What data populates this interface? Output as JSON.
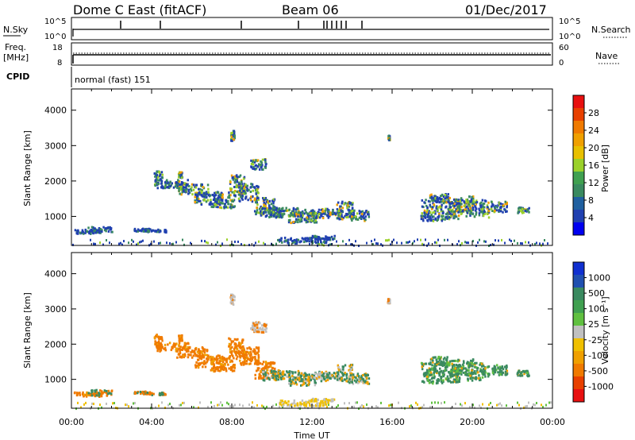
{
  "header": {
    "station": "Dome C East (fitACF)",
    "beam": "Beam 06",
    "date": "01/Dec/2017"
  },
  "strip_labels": {
    "nsky": "N.Sky",
    "nsky_top": "10^5",
    "nsky_bottom": "10^0",
    "nsearch": "N.Search",
    "nsearch_top": "10^5",
    "nsearch_bottom": "10^0",
    "freq": "Freq.",
    "freq_unit": "[MHz]",
    "freq_top": "18",
    "freq_bottom": "8",
    "nave": "Nave",
    "nave_top": "60",
    "nave_bottom": "0",
    "cpid": "CPID",
    "mode": "normal (fast) 151"
  },
  "chart_data": {
    "type": "heatmap",
    "x": {
      "label": "Time UT",
      "ticks": [
        "00:00",
        "04:00",
        "08:00",
        "12:00",
        "16:00",
        "20:00",
        "00:00"
      ],
      "range_hours": [
        0,
        24
      ]
    },
    "panels": [
      {
        "id": "power",
        "ylabel": "Slant Range [km]",
        "yticks": [
          "1000",
          "2000",
          "3000",
          "4000"
        ],
        "ylim_km": [
          180,
          4600
        ],
        "colorbar_label": "Power [dB]",
        "colorbar_ticks": [
          "4",
          "8",
          "12",
          "16",
          "20",
          "24",
          "28"
        ],
        "colorbar_range": [
          0,
          32
        ],
        "colors": [
          "#0000f0",
          "#2040b0",
          "#2060a0",
          "#3a8a60",
          "#40a050",
          "#9bd12a",
          "#e8c000",
          "#f0a000",
          "#f07a00",
          "#e84000",
          "#e81010"
        ]
      },
      {
        "id": "velocity",
        "ylabel": "Slant Range [km]",
        "yticks": [
          "1000",
          "2000",
          "3000",
          "4000"
        ],
        "ylim_km": [
          180,
          4600
        ],
        "colorbar_label": "Velocity [m s⁻¹]",
        "colorbar_ticks": [
          "1000",
          "500",
          "100",
          "25",
          "-25",
          "-100",
          "-500",
          "-1000"
        ],
        "colors": [
          "#1030d0",
          "#2050b0",
          "#3a8a60",
          "#40a050",
          "#60c040",
          "#c0c0c0",
          "#f0c000",
          "#f0a000",
          "#f07a00",
          "#e84000",
          "#e81010"
        ]
      }
    ]
  }
}
